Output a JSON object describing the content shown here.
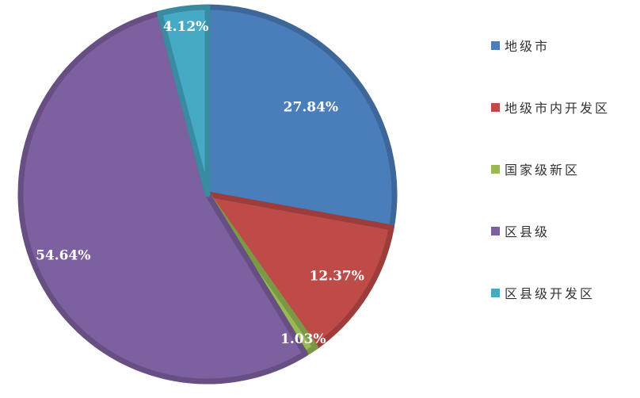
{
  "chart_data": {
    "type": "pie",
    "title": "",
    "categories": [
      "地级市",
      "地级市内开发区",
      "国家级新区",
      "区县级",
      "区县级开发区"
    ],
    "values": [
      27.84,
      12.37,
      1.03,
      54.64,
      4.12
    ],
    "labels": [
      "27.84%",
      "12.37%",
      "1.03%",
      "54.64%",
      "4.12%"
    ],
    "colors": [
      "#4a7ebb",
      "#be4b48",
      "#98b954",
      "#7d60a0",
      "#46aac5"
    ],
    "legend_position": "right",
    "start_angle": "12 o'clock, clockwise"
  }
}
